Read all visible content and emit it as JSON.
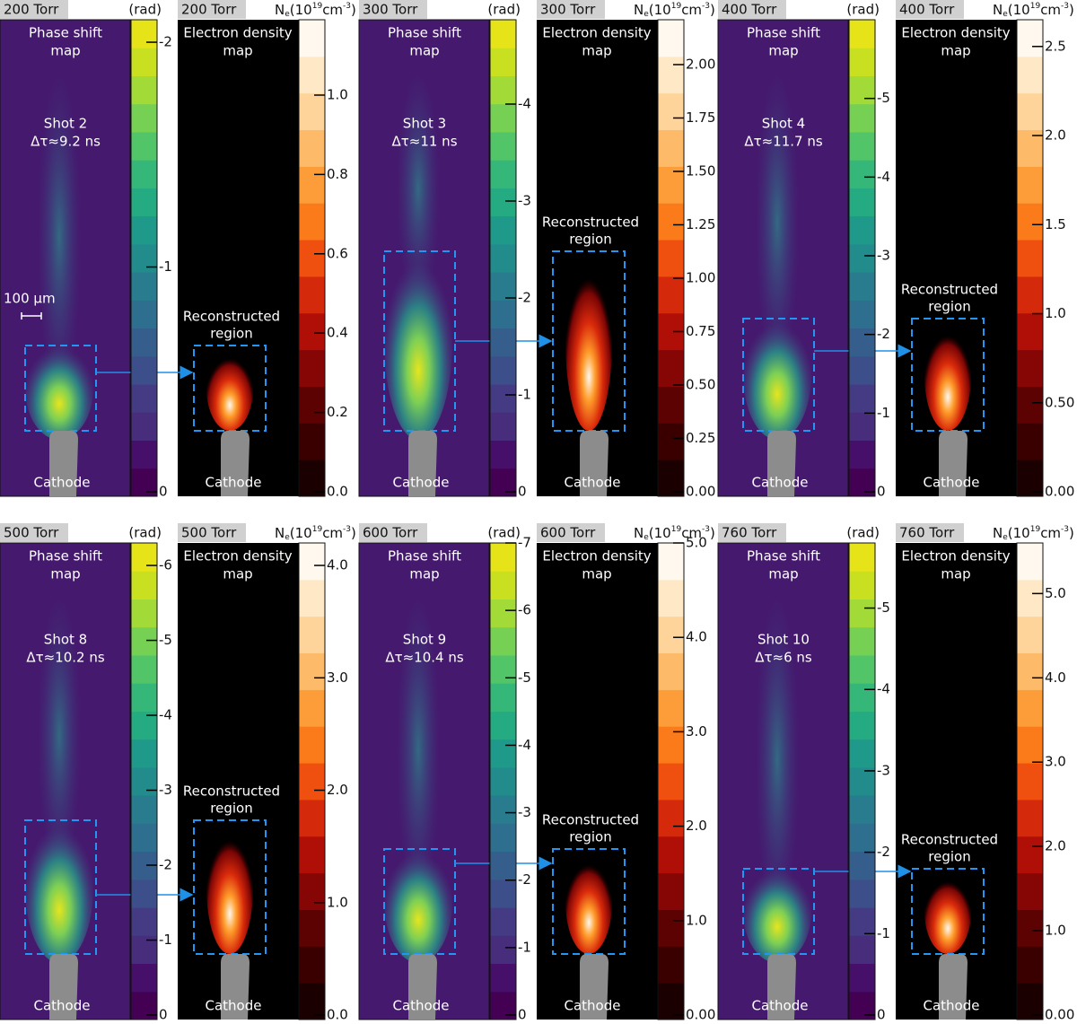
{
  "phase_title": [
    "Phase shift",
    "map"
  ],
  "density_title": [
    "Electron density",
    "map"
  ],
  "region": [
    "Reconstructed",
    "region"
  ],
  "cathode": "Cathode",
  "phase_unit": "(rad)",
  "density_unit": [
    "N",
    "e",
    "(10",
    "19",
    "cm",
    "-3",
    ")"
  ],
  "scale_bar": "100 µm",
  "panels": [
    {
      "pressure": "200 Torr",
      "shot": "Shot 2",
      "delay": "Δτ≈9.2 ns",
      "phase_lim": [
        0,
        -2.1
      ],
      "phase_ticks": [
        0,
        -1,
        -2
      ],
      "density_lim": [
        0,
        1.19
      ],
      "density_ticks": [
        {
          "value": 0,
          "label": "0.0"
        },
        0.2,
        0.4,
        0.6,
        0.8,
        {
          "value": 1,
          "label": "1.0"
        }
      ]
    },
    {
      "pressure": "300 Torr",
      "shot": "Shot 3",
      "delay": "Δτ≈11 ns",
      "phase_lim": [
        0,
        -4.87
      ],
      "phase_ticks": [
        0,
        -1,
        -2,
        -3,
        -4
      ],
      "density_lim": [
        0,
        2.21
      ],
      "density_ticks": [
        {
          "value": 0,
          "label": "0.00"
        },
        0.25,
        {
          "value": 0.5,
          "label": "0.50"
        },
        0.75,
        {
          "value": 1,
          "label": "1.00"
        },
        1.25,
        {
          "value": 1.5,
          "label": "1.50"
        },
        1.75,
        {
          "value": 2,
          "label": "2.00"
        }
      ]
    },
    {
      "pressure": "400 Torr",
      "shot": "Shot 4",
      "delay": "Δτ≈11.7 ns",
      "phase_lim": [
        0,
        -6
      ],
      "phase_ticks": [
        0,
        -1,
        -2,
        -3,
        -4,
        -5
      ],
      "density_lim": [
        0,
        2.65
      ],
      "density_ticks": [
        {
          "value": 0,
          "label": "0.00"
        },
        {
          "value": 0.5,
          "label": "0.50"
        },
        {
          "value": 1,
          "label": "1.0"
        },
        1.5,
        {
          "value": 2,
          "label": "2.0"
        },
        2.5
      ]
    },
    {
      "pressure": "500 Torr",
      "shot": "Shot 8",
      "delay": "Δτ≈10.2 ns",
      "phase_lim": [
        0,
        -6.3
      ],
      "phase_ticks": [
        0,
        -1,
        -2,
        -3,
        -4,
        -5,
        -6
      ],
      "density_lim": [
        0,
        4.2
      ],
      "density_ticks": [
        {
          "value": 0,
          "label": "0.0"
        },
        {
          "value": 1,
          "label": "1.0"
        },
        {
          "value": 2,
          "label": "2.0"
        },
        {
          "value": 3,
          "label": "3.0"
        },
        {
          "value": 4,
          "label": "4.0"
        }
      ]
    },
    {
      "pressure": "600 Torr",
      "shot": "Shot 9",
      "delay": "Δτ≈10.4 ns",
      "phase_lim": [
        0,
        -7
      ],
      "phase_ticks": [
        0,
        -1,
        -2,
        -3,
        -4,
        -5,
        -6,
        -7
      ],
      "density_lim": [
        0,
        5
      ],
      "density_ticks": [
        {
          "value": 0,
          "label": "0.00"
        },
        {
          "value": 1,
          "label": "1.0"
        },
        {
          "value": 2,
          "label": "2.0"
        },
        {
          "value": 3,
          "label": "3.0"
        },
        {
          "value": 4,
          "label": "4.0"
        },
        {
          "value": 5,
          "label": "5.0"
        }
      ]
    },
    {
      "pressure": "760 Torr",
      "shot": "Shot 10",
      "delay": "Δτ≈6 ns",
      "phase_lim": [
        0,
        -5.8
      ],
      "phase_ticks": [
        0,
        -1,
        -2,
        -3,
        -4,
        -5
      ],
      "density_lim": [
        0,
        5.6
      ],
      "density_ticks": [
        {
          "value": 0,
          "label": "0.00"
        },
        {
          "value": 1,
          "label": "1.0"
        },
        {
          "value": 2,
          "label": "2.0"
        },
        {
          "value": 3,
          "label": "3.0"
        },
        {
          "value": 4,
          "label": "4.0"
        },
        {
          "value": 5,
          "label": "5.0"
        }
      ]
    }
  ]
}
